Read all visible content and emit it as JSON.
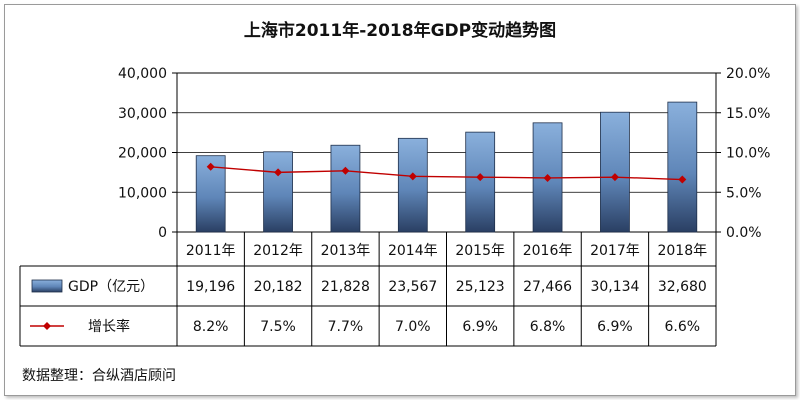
{
  "chart_data": {
    "type": "bar",
    "title": "上海市2011年-2018年GDP变动趋势图",
    "categories": [
      "2011年",
      "2012年",
      "2013年",
      "2014年",
      "2015年",
      "2016年",
      "2017年",
      "2018年"
    ],
    "series": [
      {
        "name": "GDP（亿元）",
        "type": "bar",
        "axis": "left",
        "color": "#6f9bd1",
        "values": [
          19196,
          20182,
          21828,
          23567,
          25123,
          27466,
          30134,
          32680
        ],
        "labels": [
          "19,196",
          "20,182",
          "21,828",
          "23,567",
          "25,123",
          "27,466",
          "30,134",
          "32,680"
        ]
      },
      {
        "name": "增长率",
        "type": "line",
        "axis": "right",
        "color": "#c00000",
        "values": [
          8.2,
          7.5,
          7.7,
          7.0,
          6.9,
          6.8,
          6.9,
          6.6
        ],
        "labels": [
          "8.2%",
          "7.5%",
          "7.7%",
          "7.0%",
          "6.9%",
          "6.8%",
          "6.9%",
          "6.6%"
        ]
      }
    ],
    "y_left": {
      "min": 0,
      "max": 40000,
      "ticks": [
        0,
        10000,
        20000,
        30000,
        40000
      ],
      "tick_labels": [
        "0",
        "10,000",
        "20,000",
        "30,000",
        "40,000"
      ]
    },
    "y_right": {
      "min": 0,
      "max": 20,
      "ticks": [
        0,
        5,
        10,
        15,
        20
      ],
      "tick_labels": [
        "0.0%",
        "5.0%",
        "10.0%",
        "15.0%",
        "20.0%"
      ]
    },
    "grid": true,
    "legend": "data-table"
  },
  "source": "数据整理：合纵酒店顾问"
}
